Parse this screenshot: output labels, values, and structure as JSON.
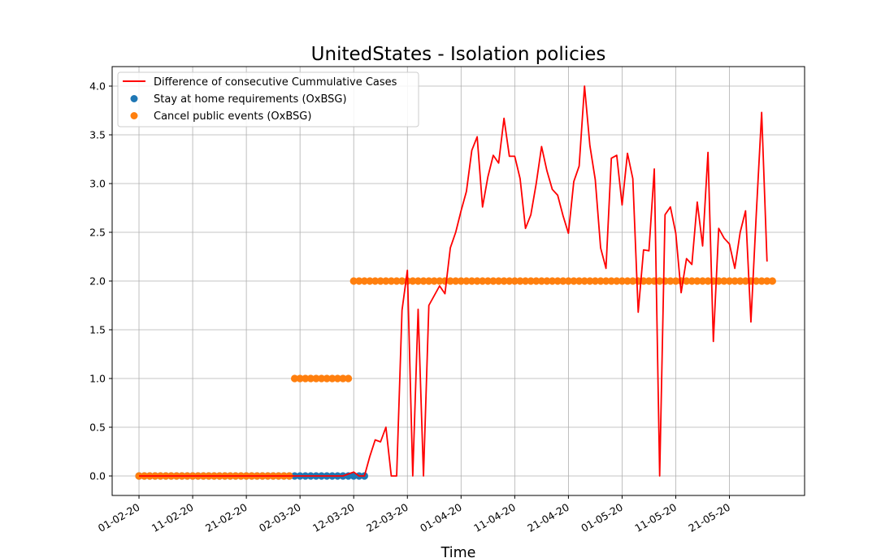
{
  "chart_data": {
    "type": "line",
    "title": "UnitedStates - Isolation policies",
    "xlabel": "Time",
    "ylabel": "",
    "x_start": "2020-02-01",
    "xlim": [
      "2020-01-27",
      "2020-06-04"
    ],
    "ylim": [
      -0.2,
      4.2
    ],
    "grid": true,
    "legend_position": "top-left",
    "y_ticks": [
      "0.0",
      "0.5",
      "1.0",
      "1.5",
      "2.0",
      "2.5",
      "3.0",
      "3.5",
      "4.0"
    ],
    "x_ticks": [
      "01-02-20",
      "11-02-20",
      "21-02-20",
      "02-03-20",
      "12-03-20",
      "22-03-20",
      "01-04-20",
      "11-04-20",
      "21-04-20",
      "01-05-20",
      "11-05-20",
      "21-05-20"
    ],
    "series": [
      {
        "name": "Difference of consecutive Cummulative Cases",
        "kind": "line",
        "color": "#ff0000",
        "start": "2020-02-01",
        "values": [
          0,
          0,
          0,
          0,
          0,
          0,
          0,
          0,
          0,
          0,
          0,
          0,
          0,
          0,
          0,
          0,
          0,
          0,
          0,
          0,
          0,
          0,
          0,
          0,
          0,
          0,
          0,
          0,
          0,
          0,
          0,
          0,
          0,
          0,
          0,
          0,
          0,
          0,
          0,
          0.02,
          0.04,
          0,
          0,
          0.2,
          0.37,
          0.35,
          0.5,
          0,
          0,
          1.7,
          2.11,
          0,
          1.71,
          0,
          1.75,
          1.85,
          1.95,
          1.87,
          2.34,
          2.5,
          2.72,
          2.92,
          3.34,
          3.48,
          2.76,
          3.07,
          3.29,
          3.21,
          3.67,
          3.28,
          3.28,
          3.05,
          2.54,
          2.68,
          3.0,
          3.38,
          3.13,
          2.94,
          2.88,
          2.67,
          2.49,
          3.02,
          3.18,
          4.0,
          3.39,
          3.04,
          2.34,
          2.13,
          3.26,
          3.29,
          2.78,
          3.31,
          3.05,
          1.68,
          2.32,
          2.31,
          3.15,
          0,
          2.68,
          2.76,
          2.49,
          1.88,
          2.23,
          2.17,
          2.81,
          2.36,
          3.32,
          1.38,
          2.54,
          2.44,
          2.38,
          2.13,
          2.5,
          2.72,
          1.58,
          2.69,
          3.73,
          2.2
        ]
      },
      {
        "name": "Stay at home requirements (OxBSG)",
        "kind": "scatter",
        "color": "#1f77b4",
        "start": "2020-02-01",
        "values": [
          0,
          0,
          0,
          0,
          0,
          0,
          0,
          0,
          0,
          0,
          0,
          0,
          0,
          0,
          0,
          0,
          0,
          0,
          0,
          0,
          0,
          0,
          0,
          0,
          0,
          0,
          0,
          0,
          0,
          0,
          0,
          0,
          0,
          0,
          0,
          0,
          0,
          0,
          0,
          0,
          0,
          0,
          0
        ]
      },
      {
        "name": "Cancel public events (OxBSG)",
        "kind": "scatter",
        "color": "#ff7f0e",
        "start": "2020-02-01",
        "values": [
          0,
          0,
          0,
          0,
          0,
          0,
          0,
          0,
          0,
          0,
          0,
          0,
          0,
          0,
          0,
          0,
          0,
          0,
          0,
          0,
          0,
          0,
          0,
          0,
          0,
          0,
          0,
          0,
          0,
          1,
          1,
          1,
          1,
          1,
          1,
          1,
          1,
          1,
          1,
          1,
          2,
          2,
          2,
          2,
          2,
          2,
          2,
          2,
          2,
          2,
          2,
          2,
          2,
          2,
          2,
          2,
          2,
          2,
          2,
          2,
          2,
          2,
          2,
          2,
          2,
          2,
          2,
          2,
          2,
          2,
          2,
          2,
          2,
          2,
          2,
          2,
          2,
          2,
          2,
          2,
          2,
          2,
          2,
          2,
          2,
          2,
          2,
          2,
          2,
          2,
          2,
          2,
          2,
          2,
          2,
          2,
          2,
          2,
          2,
          2,
          2,
          2,
          2,
          2,
          2,
          2,
          2,
          2,
          2,
          2,
          2,
          2,
          2,
          2,
          2,
          2,
          2,
          2,
          2
        ]
      }
    ]
  }
}
